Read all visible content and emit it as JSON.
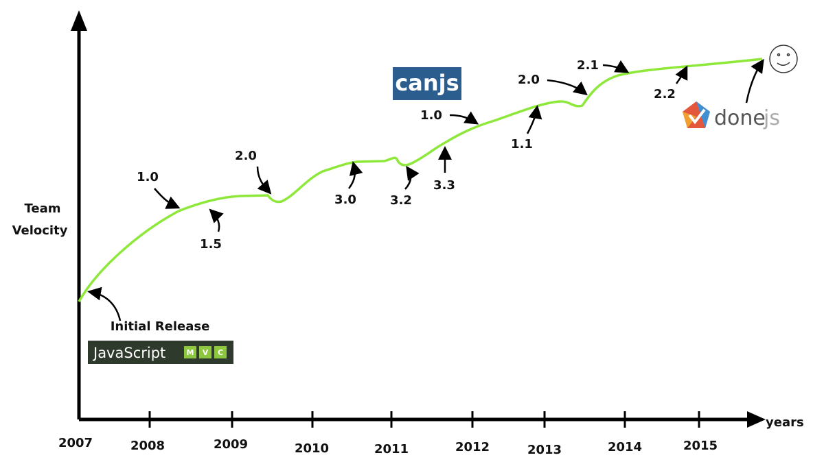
{
  "axes": {
    "y_label": [
      "Team",
      "Velocity"
    ],
    "x_label": "years",
    "years": [
      "2007",
      "2008",
      "2009",
      "2010",
      "2011",
      "2012",
      "2013",
      "2014",
      "2015"
    ]
  },
  "annotations": [
    "Initial Release",
    "1.0",
    "1.5",
    "2.0",
    "3.0",
    "3.2",
    "3.3",
    "1.0",
    "1.1",
    "2.0",
    "2.1",
    "2.2"
  ],
  "logos": {
    "javascriptmvc": {
      "name": "JavaScript",
      "letters": [
        "M",
        "V",
        "C"
      ]
    },
    "canjs": "canjs",
    "donejs": {
      "name": "done",
      "suffix": "js"
    }
  }
}
